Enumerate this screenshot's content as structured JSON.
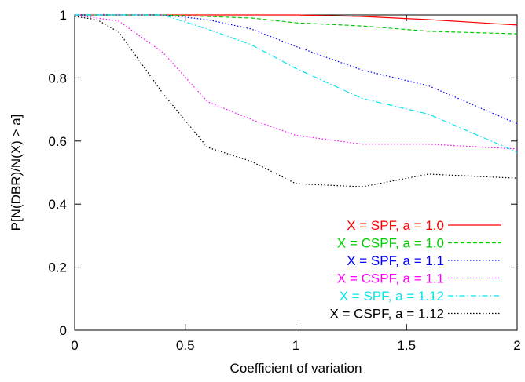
{
  "chart_data": {
    "type": "line",
    "xlabel": "Coefficient of variation",
    "ylabel": "P[N(DBR)/N(X) > a]",
    "xlim": [
      0,
      2
    ],
    "ylim": [
      0,
      1
    ],
    "xticks": [
      0,
      0.5,
      1,
      1.5,
      2
    ],
    "xtick_labels": [
      "0",
      "0.5",
      "1",
      "1.5",
      "2"
    ],
    "yticks": [
      0,
      0.2,
      0.4,
      0.6,
      0.8,
      1
    ],
    "ytick_labels": [
      "0",
      "0.2",
      "0.4",
      "0.6",
      "0.8",
      "1"
    ],
    "grid": false,
    "legend_position": "bottom-right",
    "series": [
      {
        "name": "X = SPF, a = 1.0",
        "color": "#ff0000",
        "dash": "solid",
        "x": [
          0,
          0.2,
          0.4,
          0.6,
          0.8,
          1.0,
          1.3,
          1.6,
          2.0
        ],
        "y": [
          1.0,
          1.0,
          1.0,
          1.0,
          1.0,
          1.0,
          0.995,
          0.985,
          0.968
        ]
      },
      {
        "name": "X = CSPF, a = 1.0",
        "color": "#00cc00",
        "dash": "dashed",
        "x": [
          0,
          0.2,
          0.4,
          0.6,
          0.8,
          1.0,
          1.3,
          1.6,
          2.0
        ],
        "y": [
          1.0,
          1.0,
          1.0,
          0.995,
          0.99,
          0.975,
          0.965,
          0.948,
          0.94
        ]
      },
      {
        "name": "X = SPF, a = 1.1",
        "color": "#0000ff",
        "dash": "dotted",
        "x": [
          0,
          0.2,
          0.4,
          0.6,
          0.8,
          1.0,
          1.3,
          1.6,
          2.0
        ],
        "y": [
          1.0,
          1.0,
          1.0,
          0.985,
          0.955,
          0.9,
          0.825,
          0.775,
          0.655
        ]
      },
      {
        "name": "X = CSPF, a = 1.1",
        "color": "#ff00ff",
        "dash": "dotted",
        "x": [
          0,
          0.2,
          0.4,
          0.6,
          0.8,
          1.0,
          1.3,
          1.6,
          2.0
        ],
        "y": [
          1.0,
          0.98,
          0.88,
          0.725,
          0.668,
          0.618,
          0.59,
          0.59,
          0.575
        ]
      },
      {
        "name": "X = SPF, a = 1.12",
        "color": "#00e5ee",
        "dash": "dashdot",
        "x": [
          0,
          0.2,
          0.4,
          0.6,
          0.8,
          1.0,
          1.3,
          1.6,
          2.0
        ],
        "y": [
          1.0,
          1.0,
          1.0,
          0.955,
          0.905,
          0.83,
          0.735,
          0.685,
          0.565
        ]
      },
      {
        "name": "X = CSPF, a = 1.12",
        "color": "#000000",
        "dash": "dotted",
        "x": [
          0,
          0.1,
          0.2,
          0.4,
          0.6,
          0.8,
          1.0,
          1.3,
          1.6,
          2.0
        ],
        "y": [
          0.995,
          0.985,
          0.945,
          0.75,
          0.58,
          0.535,
          0.465,
          0.455,
          0.495,
          0.482
        ]
      }
    ]
  }
}
